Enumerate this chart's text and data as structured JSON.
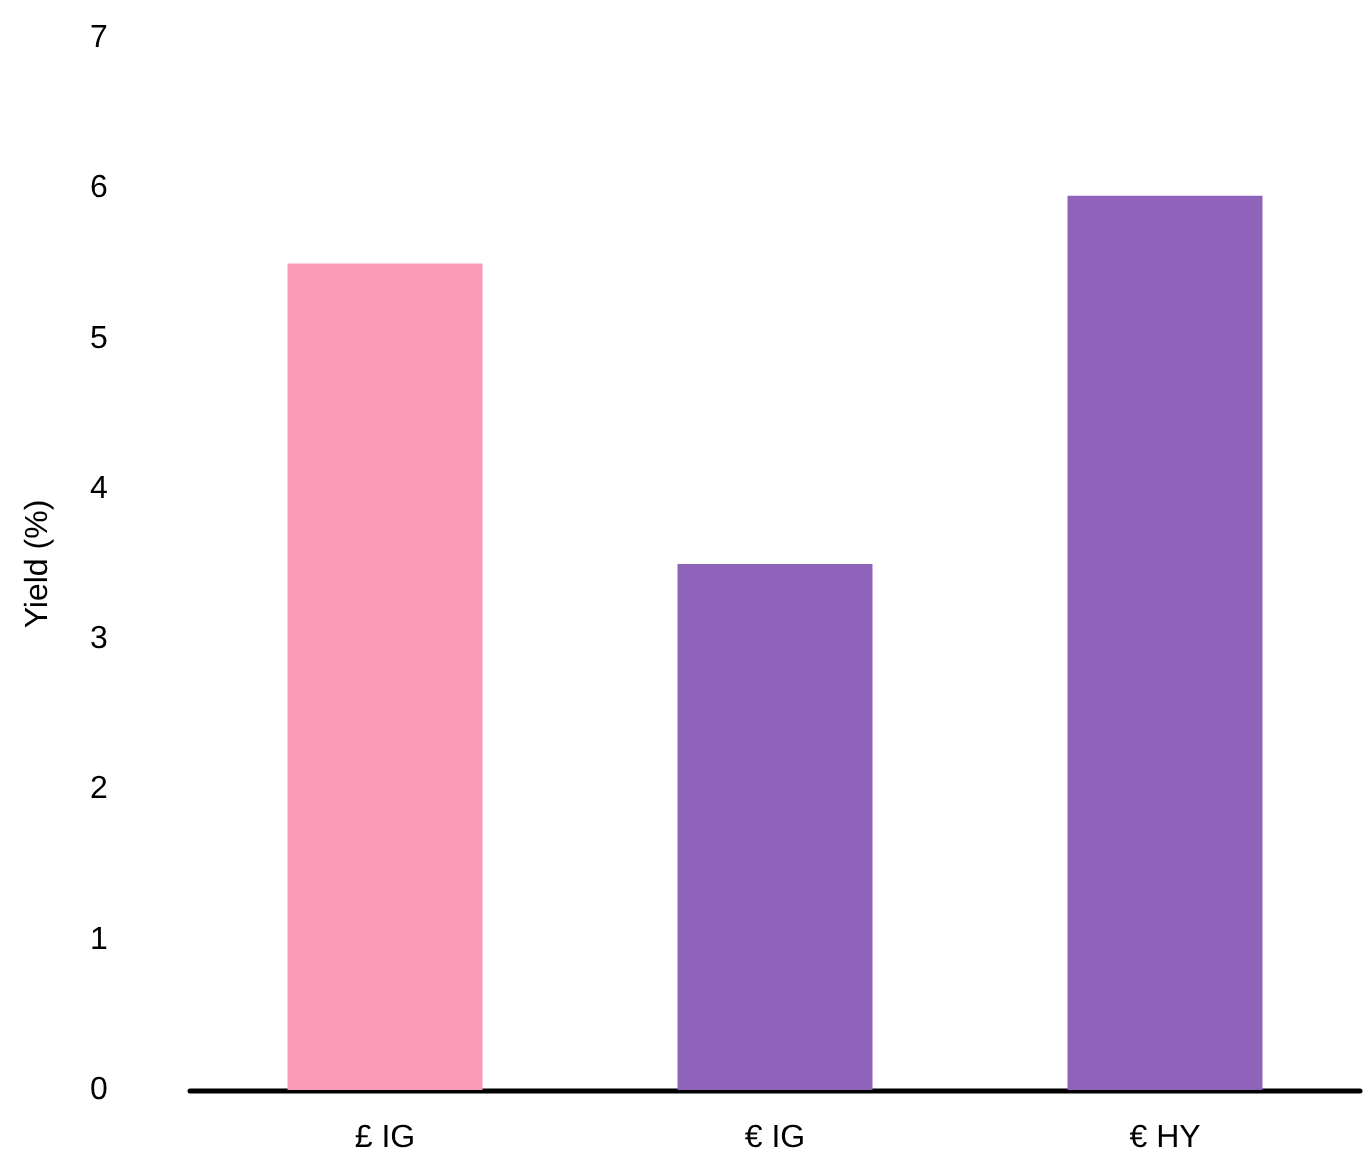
{
  "chart_data": {
    "type": "bar",
    "ylabel": "Yield (%)",
    "categories": [
      "£ IG",
      "€ IG",
      "€ HY"
    ],
    "values": [
      5.5,
      3.5,
      5.95
    ],
    "colors": [
      "#f99bb6",
      "#9063bb",
      "#9063bb"
    ],
    "ylim": [
      0,
      7
    ],
    "yticks": [
      0,
      1,
      2,
      3,
      4,
      5,
      6,
      7
    ]
  }
}
